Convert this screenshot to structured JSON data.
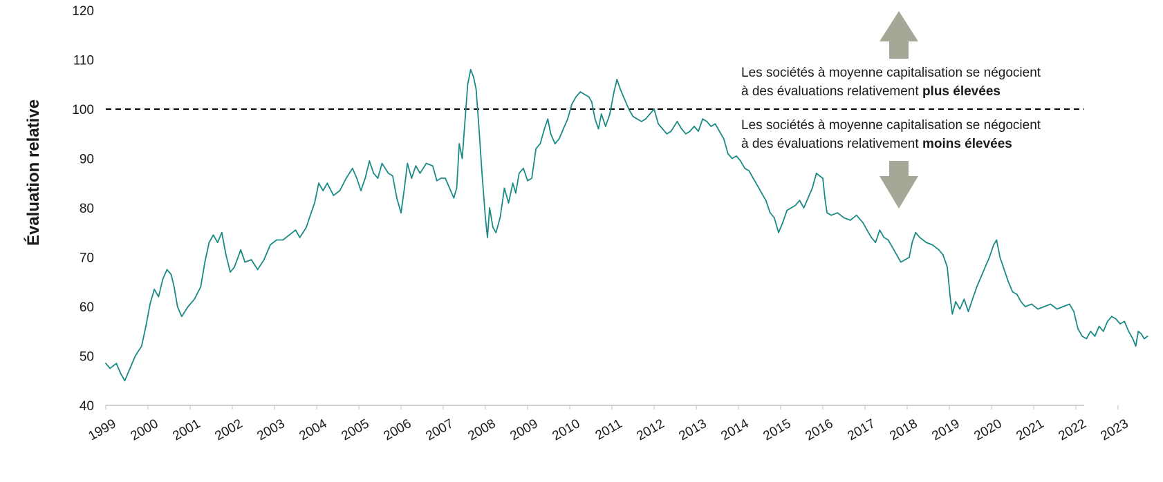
{
  "chart_data": {
    "type": "line",
    "title": "",
    "xlabel": "",
    "ylabel": "Évaluation relative",
    "ylim": [
      40,
      120
    ],
    "yticks": [
      "40",
      "50",
      "60",
      "70",
      "80",
      "90",
      "100",
      "110",
      "120"
    ],
    "xticks": [
      "1999",
      "2000",
      "2001",
      "2002",
      "2003",
      "2004",
      "2005",
      "2006",
      "2007",
      "2008",
      "2009",
      "2010",
      "2011",
      "2012",
      "2013",
      "2014",
      "2015",
      "2016",
      "2017",
      "2018",
      "2019",
      "2020",
      "2021",
      "2022",
      "2023"
    ],
    "xlim": [
      1999,
      2023.7
    ],
    "grid": false,
    "legend": "none",
    "line_color": "#1a8a84",
    "reference_line": {
      "y": 100,
      "style": "dashed",
      "color": "#000000"
    },
    "series": [
      {
        "points": [
          [
            1999.0,
            48.5
          ],
          [
            1999.1,
            47.5
          ],
          [
            1999.25,
            48.5
          ],
          [
            1999.35,
            46.5
          ],
          [
            1999.45,
            45.0
          ],
          [
            1999.55,
            47.0
          ],
          [
            1999.7,
            50.0
          ],
          [
            1999.85,
            52.0
          ],
          [
            1999.95,
            56.0
          ],
          [
            2000.05,
            60.5
          ],
          [
            2000.15,
            63.5
          ],
          [
            2000.25,
            62.0
          ],
          [
            2000.35,
            65.5
          ],
          [
            2000.45,
            67.5
          ],
          [
            2000.55,
            66.5
          ],
          [
            2000.62,
            64.0
          ],
          [
            2000.7,
            60.0
          ],
          [
            2000.8,
            58.0
          ],
          [
            2000.95,
            60.0
          ],
          [
            2001.1,
            61.5
          ],
          [
            2001.25,
            64.0
          ],
          [
            2001.35,
            69.0
          ],
          [
            2001.45,
            73.0
          ],
          [
            2001.55,
            74.5
          ],
          [
            2001.65,
            73.0
          ],
          [
            2001.75,
            75.0
          ],
          [
            2001.85,
            70.5
          ],
          [
            2001.95,
            67.0
          ],
          [
            2002.05,
            68.0
          ],
          [
            2002.2,
            71.5
          ],
          [
            2002.3,
            69.0
          ],
          [
            2002.45,
            69.5
          ],
          [
            2002.6,
            67.5
          ],
          [
            2002.75,
            69.5
          ],
          [
            2002.9,
            72.5
          ],
          [
            2003.05,
            73.5
          ],
          [
            2003.2,
            73.5
          ],
          [
            2003.35,
            74.5
          ],
          [
            2003.5,
            75.5
          ],
          [
            2003.6,
            74.0
          ],
          [
            2003.75,
            76.0
          ],
          [
            2003.85,
            78.5
          ],
          [
            2003.95,
            81.0
          ],
          [
            2004.05,
            85.0
          ],
          [
            2004.15,
            83.5
          ],
          [
            2004.25,
            85.0
          ],
          [
            2004.4,
            82.5
          ],
          [
            2004.55,
            83.5
          ],
          [
            2004.7,
            86.0
          ],
          [
            2004.85,
            88.0
          ],
          [
            2004.95,
            86.0
          ],
          [
            2005.05,
            83.5
          ],
          [
            2005.15,
            86.0
          ],
          [
            2005.25,
            89.5
          ],
          [
            2005.35,
            87.0
          ],
          [
            2005.45,
            86.0
          ],
          [
            2005.55,
            89.0
          ],
          [
            2005.7,
            87.0
          ],
          [
            2005.8,
            86.5
          ],
          [
            2005.9,
            82.0
          ],
          [
            2006.0,
            79.0
          ],
          [
            2006.08,
            84.0
          ],
          [
            2006.15,
            89.0
          ],
          [
            2006.25,
            86.0
          ],
          [
            2006.35,
            88.5
          ],
          [
            2006.45,
            87.0
          ],
          [
            2006.6,
            89.0
          ],
          [
            2006.75,
            88.5
          ],
          [
            2006.85,
            85.5
          ],
          [
            2006.95,
            86.0
          ],
          [
            2007.05,
            86.0
          ],
          [
            2007.15,
            84.0
          ],
          [
            2007.25,
            82.0
          ],
          [
            2007.32,
            84.0
          ],
          [
            2007.38,
            93.0
          ],
          [
            2007.45,
            90.0
          ],
          [
            2007.52,
            98.0
          ],
          [
            2007.58,
            105.0
          ],
          [
            2007.65,
            108.0
          ],
          [
            2007.72,
            106.5
          ],
          [
            2007.78,
            104.0
          ],
          [
            2007.85,
            96.0
          ],
          [
            2007.92,
            87.0
          ],
          [
            2008.0,
            78.0
          ],
          [
            2008.05,
            74.0
          ],
          [
            2008.1,
            80.0
          ],
          [
            2008.18,
            76.0
          ],
          [
            2008.25,
            75.0
          ],
          [
            2008.35,
            78.0
          ],
          [
            2008.45,
            84.0
          ],
          [
            2008.55,
            81.0
          ],
          [
            2008.65,
            85.0
          ],
          [
            2008.72,
            83.0
          ],
          [
            2008.8,
            87.0
          ],
          [
            2008.9,
            88.0
          ],
          [
            2009.0,
            85.5
          ],
          [
            2009.1,
            86.0
          ],
          [
            2009.2,
            92.0
          ],
          [
            2009.3,
            93.0
          ],
          [
            2009.4,
            96.0
          ],
          [
            2009.48,
            98.0
          ],
          [
            2009.55,
            95.0
          ],
          [
            2009.65,
            93.0
          ],
          [
            2009.75,
            94.0
          ],
          [
            2009.85,
            96.0
          ],
          [
            2009.95,
            98.0
          ],
          [
            2010.05,
            101.0
          ],
          [
            2010.15,
            102.5
          ],
          [
            2010.25,
            103.5
          ],
          [
            2010.35,
            103.0
          ],
          [
            2010.45,
            102.5
          ],
          [
            2010.52,
            101.5
          ],
          [
            2010.6,
            98.0
          ],
          [
            2010.68,
            96.0
          ],
          [
            2010.75,
            99.0
          ],
          [
            2010.85,
            96.5
          ],
          [
            2010.95,
            99.0
          ],
          [
            2011.05,
            103.5
          ],
          [
            2011.12,
            106.0
          ],
          [
            2011.2,
            104.0
          ],
          [
            2011.3,
            102.0
          ],
          [
            2011.4,
            100.0
          ],
          [
            2011.5,
            98.5
          ],
          [
            2011.6,
            98.0
          ],
          [
            2011.7,
            97.5
          ],
          [
            2011.8,
            98.0
          ],
          [
            2011.9,
            99.0
          ],
          [
            2012.0,
            100.0
          ],
          [
            2012.1,
            97.0
          ],
          [
            2012.2,
            96.0
          ],
          [
            2012.3,
            95.0
          ],
          [
            2012.4,
            95.5
          ],
          [
            2012.55,
            97.5
          ],
          [
            2012.65,
            96.0
          ],
          [
            2012.75,
            95.0
          ],
          [
            2012.85,
            95.5
          ],
          [
            2012.95,
            96.5
          ],
          [
            2013.05,
            95.5
          ],
          [
            2013.15,
            98.0
          ],
          [
            2013.25,
            97.5
          ],
          [
            2013.35,
            96.5
          ],
          [
            2013.45,
            97.0
          ],
          [
            2013.55,
            95.5
          ],
          [
            2013.65,
            94.0
          ],
          [
            2013.75,
            91.0
          ],
          [
            2013.85,
            90.0
          ],
          [
            2013.95,
            90.5
          ],
          [
            2014.05,
            89.5
          ],
          [
            2014.15,
            88.0
          ],
          [
            2014.25,
            87.5
          ],
          [
            2014.35,
            86.0
          ],
          [
            2014.45,
            84.5
          ],
          [
            2014.55,
            83.0
          ],
          [
            2014.65,
            81.5
          ],
          [
            2014.75,
            79.0
          ],
          [
            2014.85,
            78.0
          ],
          [
            2014.95,
            75.0
          ],
          [
            2015.05,
            77.0
          ],
          [
            2015.15,
            79.5
          ],
          [
            2015.25,
            80.0
          ],
          [
            2015.35,
            80.5
          ],
          [
            2015.45,
            81.5
          ],
          [
            2015.55,
            80.0
          ],
          [
            2015.65,
            82.0
          ],
          [
            2015.75,
            84.0
          ],
          [
            2015.85,
            87.0
          ],
          [
            2015.92,
            86.5
          ],
          [
            2016.0,
            86.0
          ],
          [
            2016.05,
            82.0
          ],
          [
            2016.1,
            79.0
          ],
          [
            2016.2,
            78.5
          ],
          [
            2016.35,
            79.0
          ],
          [
            2016.5,
            78.0
          ],
          [
            2016.65,
            77.5
          ],
          [
            2016.8,
            78.5
          ],
          [
            2016.95,
            77.0
          ],
          [
            2017.05,
            75.5
          ],
          [
            2017.15,
            74.0
          ],
          [
            2017.25,
            73.0
          ],
          [
            2017.35,
            75.5
          ],
          [
            2017.45,
            74.0
          ],
          [
            2017.55,
            73.5
          ],
          [
            2017.65,
            72.0
          ],
          [
            2017.75,
            70.5
          ],
          [
            2017.85,
            69.0
          ],
          [
            2017.95,
            69.5
          ],
          [
            2018.05,
            70.0
          ],
          [
            2018.12,
            73.0
          ],
          [
            2018.2,
            75.0
          ],
          [
            2018.3,
            74.0
          ],
          [
            2018.45,
            73.0
          ],
          [
            2018.6,
            72.5
          ],
          [
            2018.75,
            71.5
          ],
          [
            2018.85,
            70.5
          ],
          [
            2018.95,
            68.0
          ],
          [
            2019.02,
            62.0
          ],
          [
            2019.07,
            58.5
          ],
          [
            2019.15,
            61.0
          ],
          [
            2019.25,
            59.5
          ],
          [
            2019.35,
            61.5
          ],
          [
            2019.45,
            59.0
          ],
          [
            2019.55,
            61.5
          ],
          [
            2019.65,
            64.0
          ],
          [
            2019.75,
            66.0
          ],
          [
            2019.85,
            68.0
          ],
          [
            2019.95,
            70.0
          ],
          [
            2020.05,
            72.5
          ],
          [
            2020.12,
            73.5
          ],
          [
            2020.2,
            70.0
          ],
          [
            2020.3,
            67.5
          ],
          [
            2020.4,
            65.0
          ],
          [
            2020.5,
            63.0
          ],
          [
            2020.6,
            62.5
          ],
          [
            2020.7,
            61.0
          ],
          [
            2020.8,
            60.0
          ],
          [
            2020.95,
            60.5
          ],
          [
            2021.1,
            59.5
          ],
          [
            2021.25,
            60.0
          ],
          [
            2021.4,
            60.5
          ],
          [
            2021.55,
            59.5
          ],
          [
            2021.7,
            60.0
          ],
          [
            2021.85,
            60.5
          ],
          [
            2021.95,
            59.0
          ],
          [
            2022.05,
            55.5
          ],
          [
            2022.15,
            54.0
          ],
          [
            2022.25,
            53.5
          ],
          [
            2022.35,
            55.0
          ],
          [
            2022.45,
            54.0
          ],
          [
            2022.55,
            56.0
          ],
          [
            2022.65,
            55.0
          ],
          [
            2022.75,
            57.0
          ],
          [
            2022.85,
            58.0
          ],
          [
            2022.95,
            57.5
          ],
          [
            2023.05,
            56.5
          ],
          [
            2023.15,
            57.0
          ],
          [
            2023.25,
            55.0
          ],
          [
            2023.35,
            53.5
          ],
          [
            2023.42,
            52.0
          ],
          [
            2023.48,
            55.0
          ],
          [
            2023.55,
            54.5
          ],
          [
            2023.62,
            53.5
          ],
          [
            2023.7,
            54.0
          ]
        ]
      }
    ]
  },
  "annotations": {
    "above": {
      "line1": "Les sociétés à moyenne capitalisation se négocient",
      "line2_prefix": "à des évaluations relativement ",
      "line2_bold": "plus élevées"
    },
    "below": {
      "line1": "Les sociétés à moyenne capitalisation se négocient",
      "line2_prefix": "à des évaluations relativement ",
      "line2_bold": "moins élevées"
    },
    "arrow_color": "#a6a796"
  }
}
